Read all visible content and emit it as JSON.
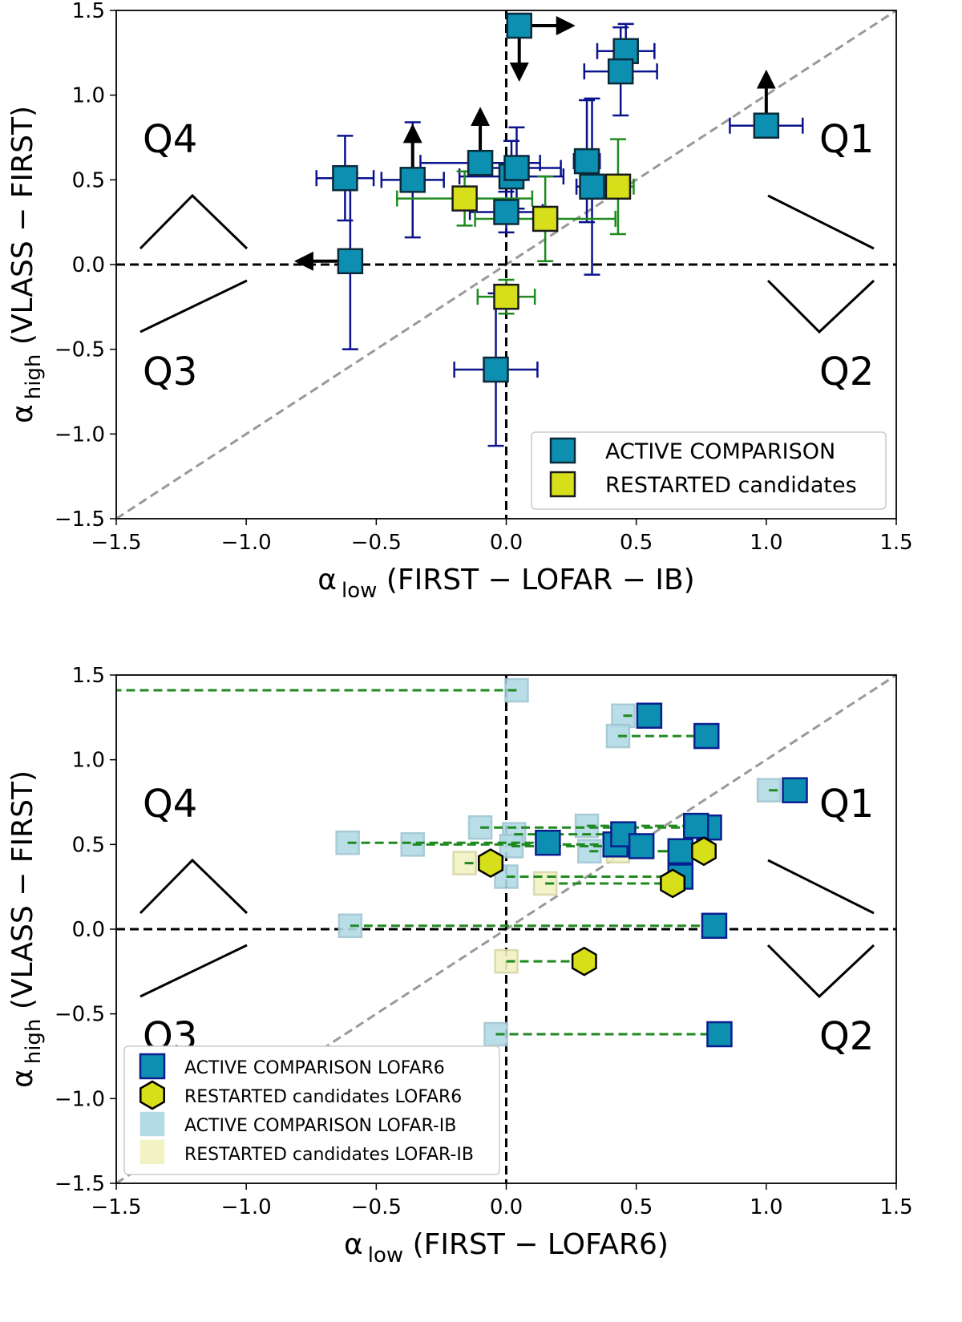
{
  "colors": {
    "active": "#0c8fb0",
    "active_edge": "#0a1f8f",
    "restarted": "#d6df1a",
    "active_light": "#b2dbe6",
    "restarted_light": "#f2f2c4",
    "error_active": "#0a128c",
    "error_restarted": "#1f8a1f",
    "connector": "#1f8a1f",
    "diagonal": "#999999",
    "arrow": "#000000"
  },
  "chart_data": [
    {
      "type": "scatter",
      "panel": "top",
      "xlabel": {
        "main": "α",
        "sub": "low",
        "rest": " (FIRST − LOFAR − IB)"
      },
      "ylabel": {
        "main": "α",
        "sub": "high",
        "rest": " (VLASS − FIRST)"
      },
      "xlim": [
        -1.5,
        1.5
      ],
      "ylim": [
        -1.5,
        1.5
      ],
      "xticks": [
        -1.5,
        -1.0,
        -0.5,
        0.0,
        0.5,
        1.0,
        1.5
      ],
      "xtick_labels": [
        "−1.5",
        "−1.0",
        "−0.5",
        "0.0",
        "0.5",
        "1.0",
        "1.5"
      ],
      "yticks": [
        -1.5,
        -1.0,
        -0.5,
        0.0,
        0.5,
        1.0,
        1.5
      ],
      "ytick_labels": [
        "−1.5",
        "−1.0",
        "−0.5",
        "0.0",
        "0.5",
        "1.0",
        "1.5"
      ],
      "quadrant_labels": [
        "Q1",
        "Q2",
        "Q3",
        "Q4"
      ],
      "legend": {
        "position": "lower-right",
        "entries": [
          "ACTIVE COMPARISON",
          "RESTARTED candidates"
        ]
      },
      "series": [
        {
          "name": "ACTIVE COMPARISON",
          "points": [
            {
              "x": 0.05,
              "y": 1.41,
              "xerr": 0,
              "yerr": 0
            },
            {
              "x": 0.46,
              "y": 1.26,
              "xerr": 0.11,
              "yerr": 0.16
            },
            {
              "x": 0.44,
              "y": 1.14,
              "xerr": 0.14,
              "yerr": 0.26
            },
            {
              "x": 1.0,
              "y": 0.82,
              "xerr": 0.14,
              "yerr": 0
            },
            {
              "x": -0.62,
              "y": 0.51,
              "xerr": 0.11,
              "yerr": 0.25
            },
            {
              "x": -0.36,
              "y": 0.5,
              "xerr": 0.12,
              "yerr": 0.34
            },
            {
              "x": -0.1,
              "y": 0.6,
              "xerr": 0.23,
              "yerr": 0
            },
            {
              "x": 0.02,
              "y": 0.52,
              "xerr": 0.2,
              "yerr": 0.21
            },
            {
              "x": 0.04,
              "y": 0.57,
              "xerr": 0.17,
              "yerr": 0.24
            },
            {
              "x": 0.31,
              "y": 0.61,
              "xerr": 0.05,
              "yerr": 0.36
            },
            {
              "x": 0.33,
              "y": 0.46,
              "xerr": 0.06,
              "yerr": 0.52
            },
            {
              "x": 0.0,
              "y": 0.31,
              "xerr": 0.14,
              "yerr": 0.12
            },
            {
              "x": -0.6,
              "y": 0.02,
              "xerr": 0,
              "yerr": 0.52
            },
            {
              "x": -0.04,
              "y": -0.62,
              "xerr": 0.16,
              "yerr": 0.45
            }
          ],
          "limits": [
            {
              "x": 0.05,
              "y": 1.41,
              "dir": "right"
            },
            {
              "x": 0.05,
              "y": 1.41,
              "dir": "down"
            },
            {
              "x": 1.0,
              "y": 0.82,
              "dir": "up"
            },
            {
              "x": -0.36,
              "y": 0.5,
              "dir": "up"
            },
            {
              "x": -0.1,
              "y": 0.6,
              "dir": "up"
            },
            {
              "x": -0.6,
              "y": 0.02,
              "dir": "left"
            }
          ]
        },
        {
          "name": "RESTARTED candidates",
          "points": [
            {
              "x": -0.16,
              "y": 0.39,
              "xerr": 0.26,
              "yerr": 0.16
            },
            {
              "x": 0.15,
              "y": 0.27,
              "xerr": 0.27,
              "yerr": 0.25
            },
            {
              "x": 0.43,
              "y": 0.46,
              "xerr": 0.06,
              "yerr": 0.28
            },
            {
              "x": 0.0,
              "y": -0.19,
              "xerr": 0.11,
              "yerr": 0.1
            }
          ]
        }
      ]
    },
    {
      "type": "scatter",
      "panel": "bottom",
      "xlabel": {
        "main": "α",
        "sub": "low",
        "rest": " (FIRST − LOFAR6)"
      },
      "ylabel": {
        "main": "α",
        "sub": "high",
        "rest": " (VLASS − FIRST)"
      },
      "xlim": [
        -1.5,
        1.5
      ],
      "ylim": [
        -1.5,
        1.5
      ],
      "xticks": [
        -1.5,
        -1.0,
        -0.5,
        0.0,
        0.5,
        1.0,
        1.5
      ],
      "xtick_labels": [
        "−1.5",
        "−1.0",
        "−0.5",
        "0.0",
        "0.5",
        "1.0",
        "1.5"
      ],
      "yticks": [
        -1.5,
        -1.0,
        -0.5,
        0.0,
        0.5,
        1.0,
        1.5
      ],
      "ytick_labels": [
        "−1.5",
        "−1.0",
        "−0.5",
        "0.0",
        "0.5",
        "1.0",
        "1.5"
      ],
      "quadrant_labels": [
        "Q1",
        "Q2",
        "Q3",
        "Q4"
      ],
      "legend": {
        "position": "lower-left",
        "entries": [
          "ACTIVE COMPARISON LOFAR6",
          "RESTARTED candidates LOFAR6",
          "ACTIVE COMPARISON LOFAR-IB",
          "RESTARTED candidates LOFAR-IB"
        ]
      },
      "series": [
        {
          "name": "ACTIVE COMPARISON LOFAR6 / LOFAR-IB pairs",
          "pairs": [
            {
              "x_ib": 0.04,
              "x_l6": -1.5,
              "y": 1.41
            },
            {
              "x_ib": 0.45,
              "x_l6": 0.55,
              "y": 1.26
            },
            {
              "x_ib": 0.43,
              "x_l6": 0.77,
              "y": 1.14
            },
            {
              "x_ib": 1.01,
              "x_l6": 1.11,
              "y": 0.82
            },
            {
              "x_ib": -0.61,
              "x_l6": 0.16,
              "y": 0.51
            },
            {
              "x_ib": -0.36,
              "x_l6": 0.42,
              "y": 0.5
            },
            {
              "x_ib": -0.1,
              "x_l6": 0.78,
              "y": 0.6
            },
            {
              "x_ib": 0.03,
              "x_l6": 0.45,
              "y": 0.56
            },
            {
              "x_ib": 0.02,
              "x_l6": 0.52,
              "y": 0.49
            },
            {
              "x_ib": 0.31,
              "x_l6": 0.73,
              "y": 0.61
            },
            {
              "x_ib": 0.32,
              "x_l6": 0.67,
              "y": 0.46
            },
            {
              "x_ib": 0.0,
              "x_l6": 0.67,
              "y": 0.31
            },
            {
              "x_ib": -0.6,
              "x_l6": 0.8,
              "y": 0.02
            },
            {
              "x_ib": -0.04,
              "x_l6": 0.82,
              "y": -0.62
            }
          ]
        },
        {
          "name": "RESTARTED candidates LOFAR6 / LOFAR-IB pairs",
          "pairs": [
            {
              "x_ib": -0.16,
              "x_l6": -0.06,
              "y": 0.39
            },
            {
              "x_ib": 0.15,
              "x_l6": 0.64,
              "y": 0.27
            },
            {
              "x_ib": 0.43,
              "x_l6": 0.76,
              "y": 0.46
            },
            {
              "x_ib": 0.0,
              "x_l6": 0.3,
              "y": -0.19
            }
          ]
        }
      ]
    }
  ]
}
